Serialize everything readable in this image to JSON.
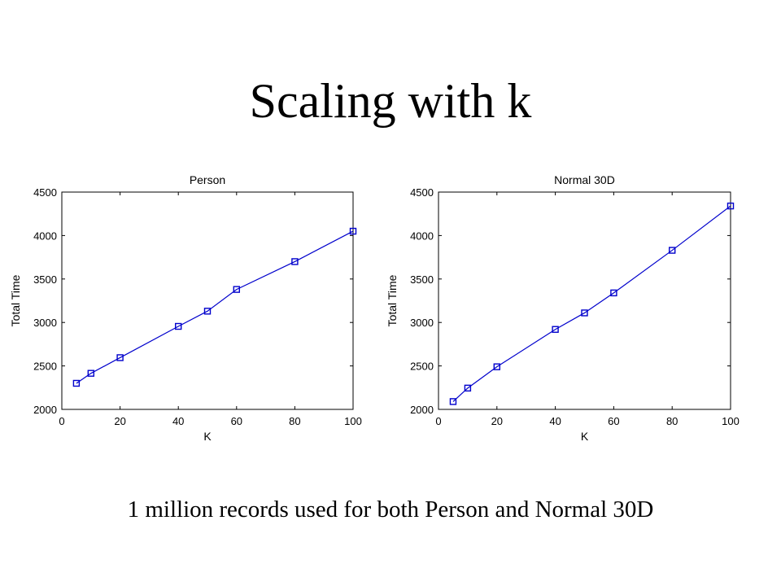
{
  "slide": {
    "title": "Scaling with k",
    "caption": "1 million records used for both Person and Normal 30D"
  },
  "colors": {
    "line": "#0000cc",
    "axis": "#000000"
  },
  "chart_data": [
    {
      "type": "line",
      "title": "Person",
      "xlabel": "K",
      "ylabel": "Total Time",
      "xlim": [
        0,
        100
      ],
      "ylim": [
        2000,
        4500
      ],
      "xticks": [
        0,
        20,
        40,
        60,
        80,
        100
      ],
      "yticks": [
        2000,
        2500,
        3000,
        3500,
        4000,
        4500
      ],
      "grid": false,
      "marker": "square",
      "series": [
        {
          "x": [
            5,
            10,
            20,
            40,
            50,
            60,
            80,
            100
          ],
          "y": [
            2300,
            2415,
            2595,
            2955,
            3130,
            3380,
            3700,
            4050
          ]
        }
      ]
    },
    {
      "type": "line",
      "title": "Normal 30D",
      "xlabel": "K",
      "ylabel": "Total Time",
      "xlim": [
        0,
        100
      ],
      "ylim": [
        2000,
        4500
      ],
      "xticks": [
        0,
        20,
        40,
        60,
        80,
        100
      ],
      "yticks": [
        2000,
        2500,
        3000,
        3500,
        4000,
        4500
      ],
      "grid": false,
      "marker": "square",
      "series": [
        {
          "x": [
            5,
            10,
            20,
            40,
            50,
            60,
            80,
            100
          ],
          "y": [
            2090,
            2245,
            2490,
            2920,
            3110,
            3340,
            3830,
            4340
          ]
        }
      ]
    }
  ]
}
